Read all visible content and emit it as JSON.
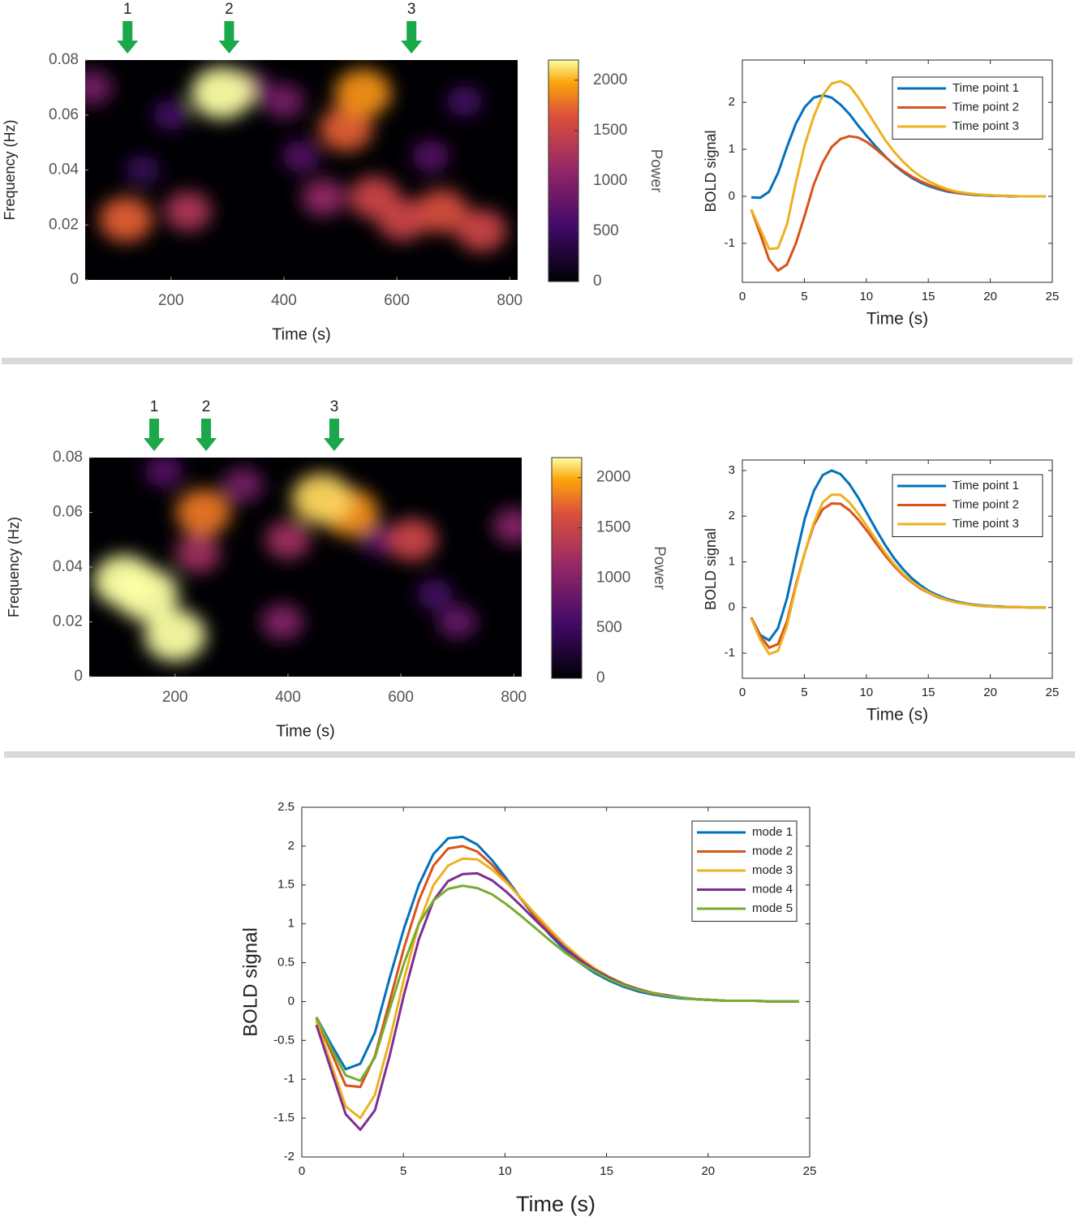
{
  "chart_data": [
    {
      "type": "heatmap",
      "xlabel": "Time (s)",
      "ylabel": "Frequency (Hz)",
      "xlim": [
        48,
        814
      ],
      "xticks": [
        200,
        400,
        600,
        800
      ],
      "ylim": [
        0,
        0.08
      ],
      "yticks": [
        0,
        0.02,
        0.04,
        0.06,
        0.08
      ],
      "clim": [
        0,
        2200
      ],
      "cticks": [
        0,
        500,
        1000,
        1500,
        2000
      ],
      "clabel": "Power",
      "points": {
        "x": [
          150,
          720,
          200,
          660,
          430,
          60,
          340,
          400,
          470,
          230,
          750,
          560,
          610,
          680,
          510,
          120,
          540,
          290
        ],
        "y": [
          0.04,
          0.065,
          0.06,
          0.045,
          0.045,
          0.07,
          0.07,
          0.065,
          0.03,
          0.025,
          0.018,
          0.03,
          0.022,
          0.025,
          0.055,
          0.022,
          0.068,
          0.068
        ],
        "values": [
          500,
          600,
          600,
          700,
          700,
          900,
          900,
          900,
          1100,
          1300,
          1500,
          1500,
          1500,
          1600,
          1700,
          1700,
          1900,
          2200
        ]
      },
      "arrows": {
        "labels": [
          "1",
          "2",
          "3"
        ],
        "x": [
          123,
          303,
          626
        ],
        "color": "#1aa84a"
      }
    },
    {
      "type": "line",
      "xlabel": "Time (s)",
      "ylabel": "BOLD signal",
      "xlim": [
        0,
        25
      ],
      "xticks": [
        0,
        5,
        10,
        15,
        20,
        25
      ],
      "ylim": [
        -1.83,
        2.9
      ],
      "yticks": [
        -1,
        0,
        1,
        2
      ],
      "legend": "upper right",
      "x": [
        0.72,
        1.44,
        2.16,
        2.88,
        3.6,
        4.32,
        5.04,
        5.76,
        6.48,
        7.2,
        7.92,
        8.64,
        9.36,
        10.08,
        10.8,
        11.52,
        12.24,
        12.96,
        13.68,
        14.4,
        15.12,
        15.84,
        16.56,
        17.28,
        18,
        18.72,
        19.44,
        20.16,
        20.88,
        21.6,
        22.32,
        23.04,
        23.76,
        24.48
      ],
      "series": [
        {
          "name": "Time point 1",
          "color": "#0072bd",
          "values": [
            -0.02,
            -0.03,
            0.1,
            0.5,
            1.05,
            1.55,
            1.9,
            2.1,
            2.15,
            2.1,
            1.95,
            1.75,
            1.5,
            1.27,
            1.05,
            0.85,
            0.67,
            0.52,
            0.39,
            0.29,
            0.21,
            0.15,
            0.1,
            0.07,
            0.05,
            0.03,
            0.02,
            0.01,
            0.01,
            0,
            0,
            0,
            0,
            0
          ]
        },
        {
          "name": "Time point 2",
          "color": "#d95319",
          "values": [
            -0.28,
            -0.8,
            -1.35,
            -1.58,
            -1.45,
            -1.0,
            -0.4,
            0.25,
            0.72,
            1.05,
            1.22,
            1.28,
            1.25,
            1.15,
            1.0,
            0.84,
            0.68,
            0.54,
            0.42,
            0.32,
            0.24,
            0.17,
            0.12,
            0.08,
            0.06,
            0.04,
            0.03,
            0.02,
            0.01,
            0.01,
            0,
            0,
            0,
            0
          ]
        },
        {
          "name": "Time point 3",
          "color": "#edb120",
          "values": [
            -0.28,
            -0.7,
            -1.12,
            -1.1,
            -0.6,
            0.3,
            1.1,
            1.7,
            2.15,
            2.4,
            2.45,
            2.35,
            2.1,
            1.8,
            1.5,
            1.2,
            0.95,
            0.74,
            0.56,
            0.42,
            0.31,
            0.22,
            0.15,
            0.1,
            0.07,
            0.05,
            0.03,
            0.02,
            0.01,
            0.01,
            0,
            0,
            0,
            0
          ]
        }
      ]
    },
    {
      "type": "heatmap",
      "xlabel": "Time (s)",
      "ylabel": "Frequency (Hz)",
      "xlim": [
        48,
        814
      ],
      "xticks": [
        200,
        400,
        600,
        800
      ],
      "ylim": [
        0,
        0.08
      ],
      "yticks": [
        0,
        0.02,
        0.04,
        0.06,
        0.08
      ],
      "clim": [
        0,
        2200
      ],
      "cticks": [
        0,
        500,
        1000,
        1500,
        2000
      ],
      "clabel": "Power",
      "points": {
        "x": [
          660,
          560,
          180,
          700,
          320,
          390,
          800,
          240,
          400,
          620,
          250,
          510,
          460,
          110,
          200,
          150
        ],
        "y": [
          0.03,
          0.05,
          0.075,
          0.02,
          0.07,
          0.02,
          0.055,
          0.045,
          0.05,
          0.05,
          0.06,
          0.06,
          0.065,
          0.035,
          0.015,
          0.03
        ],
        "values": [
          600,
          700,
          700,
          800,
          900,
          1000,
          1000,
          1200,
          1200,
          1500,
          1800,
          1900,
          2100,
          2200,
          2200,
          2300
        ]
      },
      "arrows": {
        "labels": [
          "1",
          "2",
          "3"
        ],
        "x": [
          163,
          255,
          482
        ],
        "color": "#1aa84a"
      }
    },
    {
      "type": "line",
      "xlabel": "Time (s)",
      "ylabel": "BOLD signal",
      "xlim": [
        0,
        25
      ],
      "xticks": [
        0,
        5,
        10,
        15,
        20,
        25
      ],
      "ylim": [
        -1.55,
        3.23
      ],
      "yticks": [
        -1,
        0,
        1,
        2,
        3
      ],
      "legend": "upper right",
      "x": [
        0.72,
        1.44,
        2.16,
        2.88,
        3.6,
        4.32,
        5.04,
        5.76,
        6.48,
        7.2,
        7.92,
        8.64,
        9.36,
        10.08,
        10.8,
        11.52,
        12.24,
        12.96,
        13.68,
        14.4,
        15.12,
        15.84,
        16.56,
        17.28,
        18,
        18.72,
        19.44,
        20.16,
        20.88,
        21.6,
        22.32,
        23.04,
        23.76,
        24.48
      ],
      "series": [
        {
          "name": "Time point 1",
          "color": "#0072bd",
          "values": [
            -0.22,
            -0.6,
            -0.72,
            -0.45,
            0.2,
            1.1,
            1.95,
            2.55,
            2.9,
            3.0,
            2.92,
            2.7,
            2.4,
            2.05,
            1.7,
            1.37,
            1.08,
            0.84,
            0.64,
            0.48,
            0.35,
            0.26,
            0.18,
            0.13,
            0.09,
            0.06,
            0.04,
            0.03,
            0.02,
            0.01,
            0.01,
            0,
            0,
            0
          ]
        },
        {
          "name": "Time point 2",
          "color": "#d95319",
          "values": [
            -0.22,
            -0.62,
            -0.88,
            -0.8,
            -0.3,
            0.5,
            1.2,
            1.8,
            2.15,
            2.28,
            2.27,
            2.13,
            1.92,
            1.67,
            1.4,
            1.14,
            0.91,
            0.71,
            0.55,
            0.41,
            0.31,
            0.22,
            0.16,
            0.11,
            0.08,
            0.05,
            0.03,
            0.02,
            0.01,
            0.01,
            0.01,
            0,
            0,
            0
          ]
        },
        {
          "name": "Time point 3",
          "color": "#edb120",
          "values": [
            -0.24,
            -0.7,
            -1.02,
            -0.95,
            -0.4,
            0.45,
            1.2,
            1.85,
            2.3,
            2.47,
            2.47,
            2.3,
            2.05,
            1.77,
            1.48,
            1.2,
            0.95,
            0.74,
            0.57,
            0.43,
            0.32,
            0.23,
            0.16,
            0.11,
            0.08,
            0.05,
            0.03,
            0.02,
            0.01,
            0.01,
            0.01,
            0,
            0,
            0
          ]
        }
      ]
    },
    {
      "type": "line",
      "xlabel": "Time (s)",
      "ylabel": "BOLD signal",
      "xlim": [
        0,
        25
      ],
      "xticks": [
        0,
        5,
        10,
        15,
        20,
        25
      ],
      "ylim": [
        -2,
        2.5
      ],
      "yticks": [
        -2,
        -1.5,
        -1,
        -0.5,
        0,
        0.5,
        1,
        1.5,
        2,
        2.5
      ],
      "legend": "upper right",
      "x": [
        0.72,
        1.44,
        2.16,
        2.88,
        3.6,
        4.32,
        5.04,
        5.76,
        6.48,
        7.2,
        7.92,
        8.64,
        9.36,
        10.08,
        10.8,
        11.52,
        12.24,
        12.96,
        13.68,
        14.4,
        15.12,
        15.84,
        16.56,
        17.28,
        18,
        18.72,
        19.44,
        20.16,
        20.88,
        21.6,
        22.32,
        23.04,
        23.76,
        24.48
      ],
      "series": [
        {
          "name": "mode 1",
          "color": "#0072bd",
          "values": [
            -0.2,
            -0.55,
            -0.87,
            -0.8,
            -0.4,
            0.3,
            0.95,
            1.5,
            1.9,
            2.1,
            2.12,
            2.02,
            1.82,
            1.58,
            1.32,
            1.07,
            0.85,
            0.66,
            0.5,
            0.37,
            0.27,
            0.19,
            0.13,
            0.09,
            0.06,
            0.04,
            0.03,
            0.02,
            0.01,
            0.01,
            0.01,
            0,
            0,
            0
          ]
        },
        {
          "name": "mode 2",
          "color": "#d95319",
          "values": [
            -0.22,
            -0.65,
            -1.08,
            -1.1,
            -0.7,
            0.0,
            0.7,
            1.3,
            1.75,
            1.97,
            2.0,
            1.93,
            1.76,
            1.55,
            1.32,
            1.09,
            0.88,
            0.69,
            0.53,
            0.4,
            0.29,
            0.21,
            0.15,
            0.1,
            0.07,
            0.05,
            0.03,
            0.02,
            0.01,
            0.01,
            0.01,
            0,
            0,
            0
          ]
        },
        {
          "name": "mode 3",
          "color": "#edb120",
          "values": [
            -0.25,
            -0.8,
            -1.35,
            -1.5,
            -1.2,
            -0.5,
            0.3,
            1.0,
            1.5,
            1.75,
            1.84,
            1.83,
            1.7,
            1.53,
            1.33,
            1.12,
            0.92,
            0.73,
            0.57,
            0.43,
            0.32,
            0.23,
            0.16,
            0.11,
            0.08,
            0.05,
            0.03,
            0.02,
            0.01,
            0.01,
            0.01,
            0,
            0,
            0
          ]
        },
        {
          "name": "mode 4",
          "color": "#7e2f8e",
          "values": [
            -0.3,
            -0.88,
            -1.45,
            -1.65,
            -1.4,
            -0.7,
            0.1,
            0.8,
            1.3,
            1.55,
            1.64,
            1.65,
            1.56,
            1.41,
            1.23,
            1.04,
            0.86,
            0.69,
            0.54,
            0.41,
            0.31,
            0.22,
            0.16,
            0.11,
            0.08,
            0.05,
            0.03,
            0.02,
            0.01,
            0.01,
            0.01,
            0,
            0,
            0
          ]
        },
        {
          "name": "mode 5",
          "color": "#77ac30",
          "values": [
            -0.2,
            -0.6,
            -0.95,
            -1.02,
            -0.72,
            -0.1,
            0.5,
            1.0,
            1.3,
            1.45,
            1.49,
            1.46,
            1.38,
            1.25,
            1.1,
            0.94,
            0.78,
            0.63,
            0.5,
            0.39,
            0.29,
            0.21,
            0.15,
            0.11,
            0.07,
            0.05,
            0.03,
            0.02,
            0.01,
            0.01,
            0.01,
            0,
            0,
            0
          ]
        }
      ]
    }
  ]
}
